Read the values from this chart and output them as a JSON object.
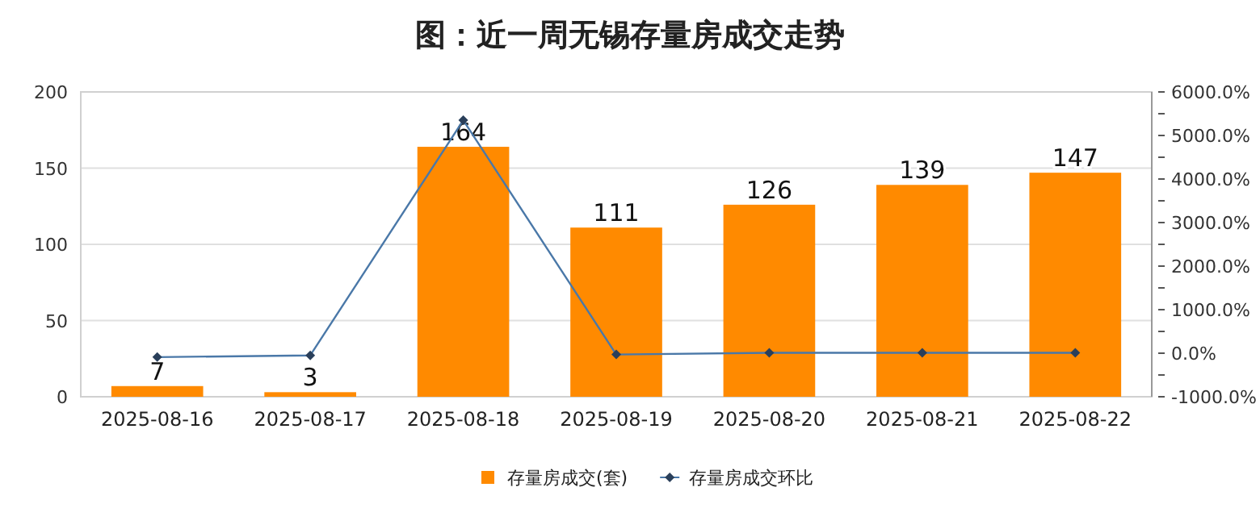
{
  "chart_data": {
    "type": "bar",
    "title": "图：近一周无锡存量房成交走势",
    "categories": [
      "2025-08-16",
      "2025-08-17",
      "2025-08-18",
      "2025-08-19",
      "2025-08-20",
      "2025-08-21",
      "2025-08-22"
    ],
    "series": [
      {
        "name": "存量房成交(套)",
        "color": "#ff8a00",
        "values": [
          7,
          3,
          164,
          111,
          126,
          139,
          147
        ],
        "value_labels": [
          "7",
          "3",
          "164",
          "111",
          "126",
          "139",
          "147"
        ]
      },
      {
        "name": "存量房成交环比",
        "type": "line",
        "axis": "y2",
        "color": "#4a78a8",
        "marker": "diamond",
        "values": [
          -90,
          -50,
          5350,
          -30,
          10,
          10,
          10
        ]
      }
    ],
    "ylim": [
      0,
      200
    ],
    "yticks": [
      0,
      50,
      100,
      150,
      200
    ],
    "y2lim": [
      -1000,
      6000
    ],
    "y2ticks": [
      {
        "value": -1000,
        "label": "-1000.0%"
      },
      {
        "value": -500,
        "label": null
      },
      {
        "value": 0,
        "label": "0.0%"
      },
      {
        "value": 500,
        "label": null
      },
      {
        "value": 1000,
        "label": "1000.0%"
      },
      {
        "value": 1500,
        "label": null
      },
      {
        "value": 2000,
        "label": "2000.0%"
      },
      {
        "value": 2500,
        "label": null
      },
      {
        "value": 3000,
        "label": "3000.0%"
      },
      {
        "value": 3500,
        "label": null
      },
      {
        "value": 4000,
        "label": "4000.0%"
      },
      {
        "value": 4500,
        "label": null
      },
      {
        "value": 5000,
        "label": "5000.0%"
      },
      {
        "value": 5500,
        "label": null
      },
      {
        "value": 6000,
        "label": "6000.0%"
      }
    ],
    "grid": "y",
    "legend": "bottom"
  }
}
